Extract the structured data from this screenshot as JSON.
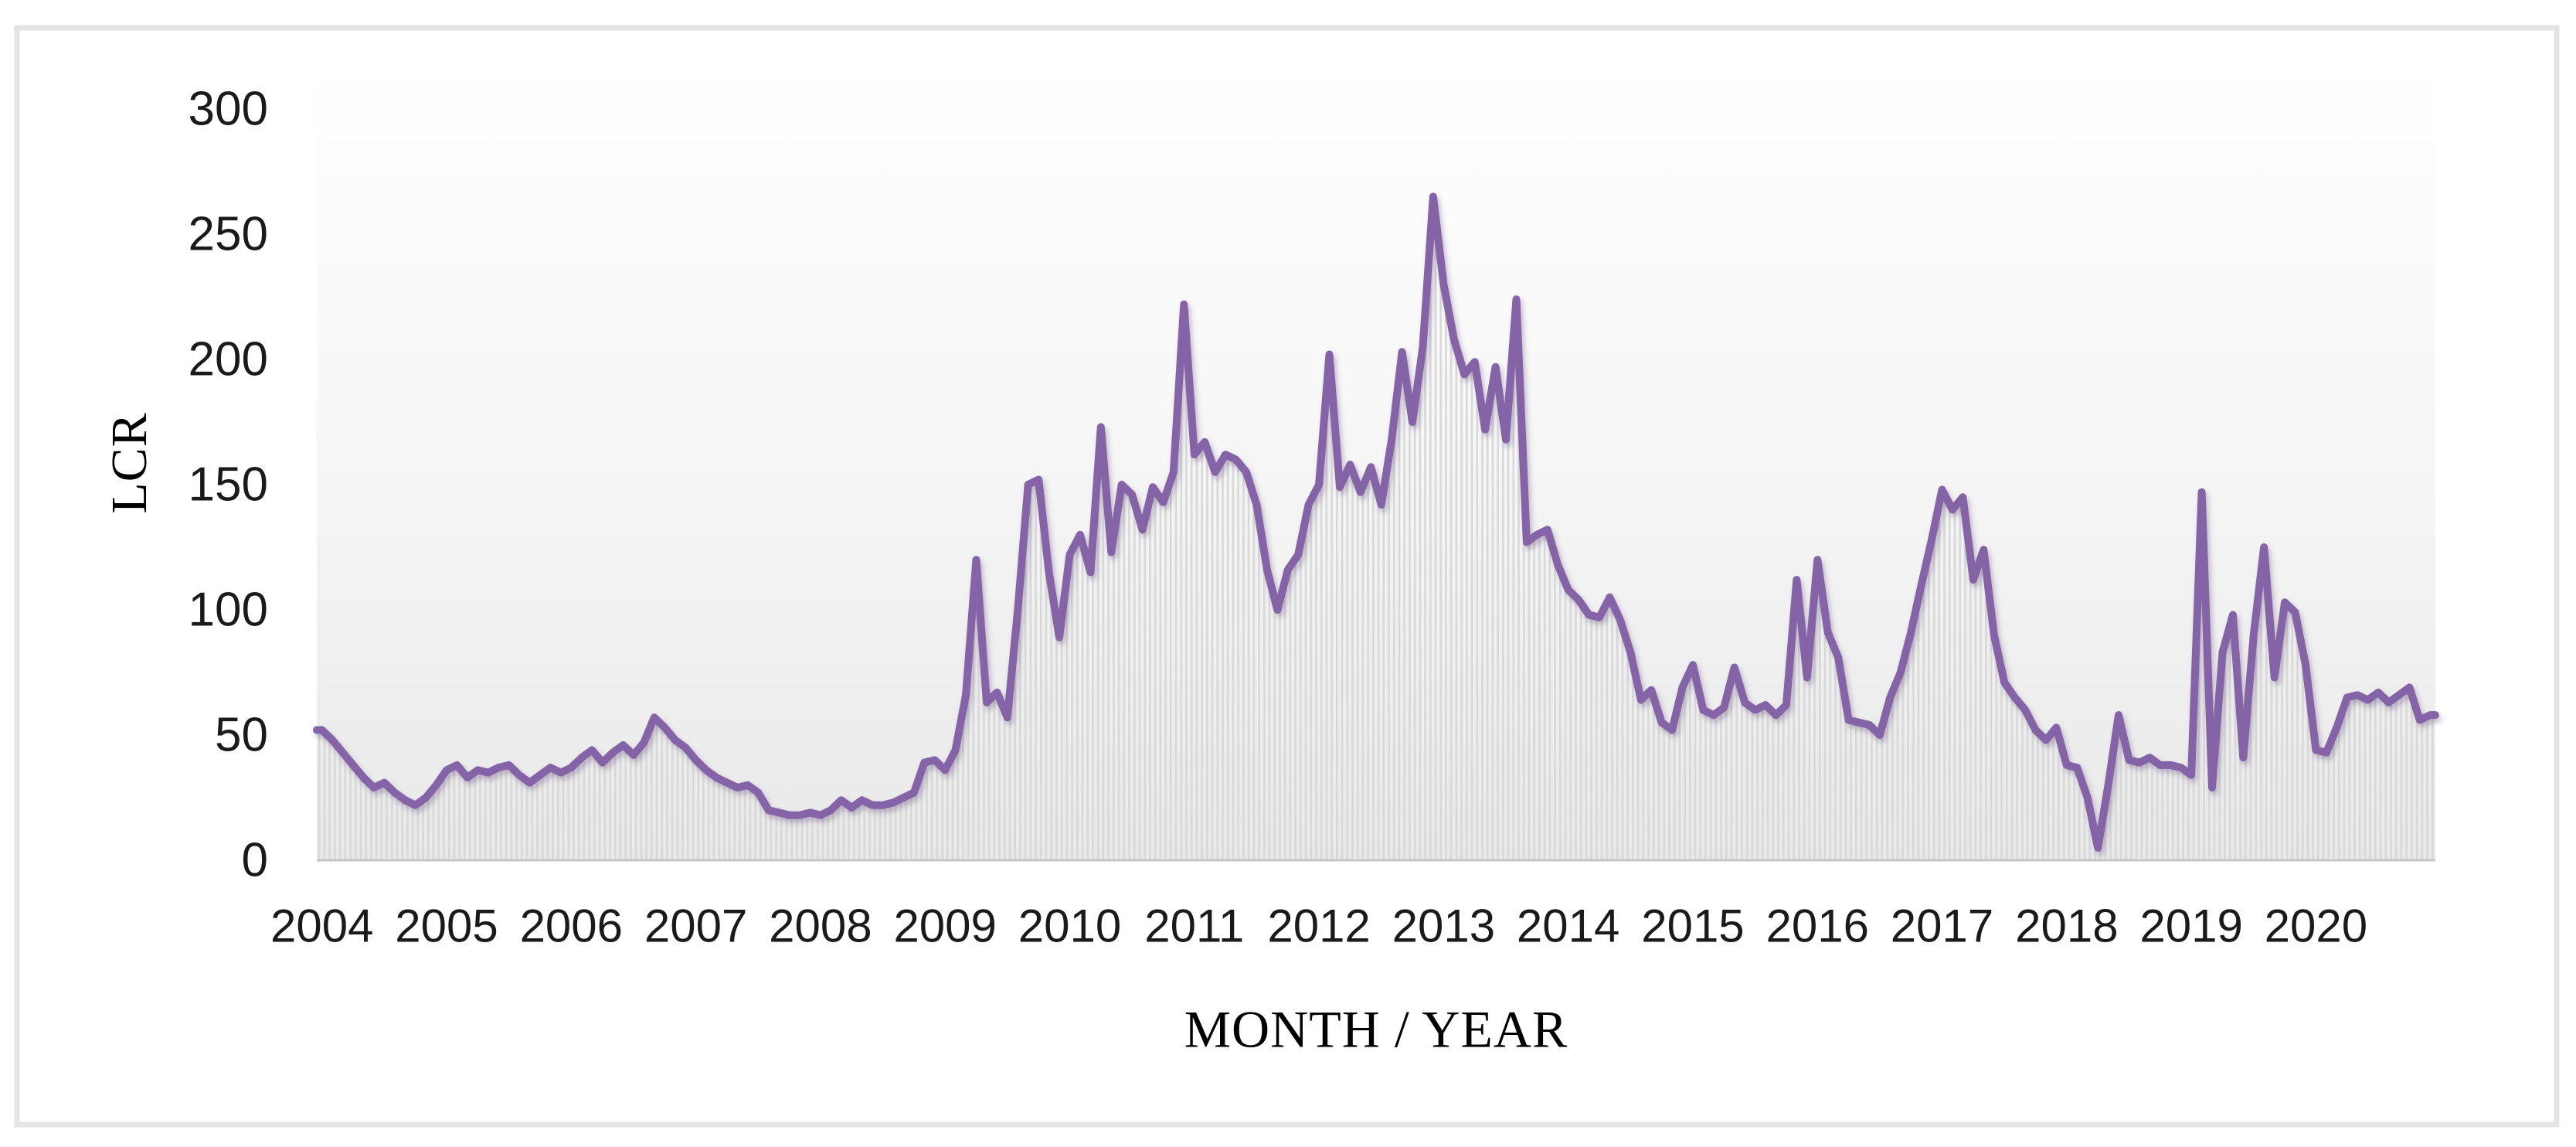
{
  "figure": {
    "border_color": "#e4e4e4",
    "background": "#ffffff"
  },
  "axes": {
    "y": {
      "title": "LCR",
      "ticks": [
        0,
        50,
        100,
        150,
        200,
        250,
        300
      ],
      "min": 0,
      "max": 300
    },
    "x": {
      "title": "MONTH / YEAR",
      "tick_labels": [
        "2004",
        "2005",
        "2006",
        "2007",
        "2008",
        "2009",
        "2010",
        "2011",
        "2012",
        "2013",
        "2014",
        "2015",
        "2016",
        "2017",
        "2018",
        "2019",
        "2020"
      ]
    }
  },
  "style": {
    "line_color": "#8464A6",
    "line_shadow_color": "#5d4878",
    "hatch_color": "#d8d8d8",
    "plot_bg_top": "#ffffff",
    "plot_bg_mid": "#f7f7f7",
    "plot_bg_bottom": "#e9e9e9",
    "axis_line_color": "#c6c6c6",
    "tick_text_color": "#1a1a1a"
  },
  "chart_data": {
    "type": "line",
    "title": "",
    "xlabel": "MONTH / YEAR",
    "ylabel": "LCR",
    "ylim": [
      0,
      300
    ],
    "grid": false,
    "legend_position": "none",
    "x_unit": "month",
    "x_start": "2004-01",
    "x_end": "2020-12",
    "x_tick_labels": [
      "2004",
      "2005",
      "2006",
      "2007",
      "2008",
      "2009",
      "2010",
      "2011",
      "2012",
      "2013",
      "2014",
      "2015",
      "2016",
      "2017",
      "2018",
      "2019",
      "2020"
    ],
    "area_fill": "vertical-hatch-below-line",
    "series": [
      {
        "name": "LCR",
        "color": "#8464A6",
        "values": [
          52,
          48,
          43,
          38,
          33,
          29,
          31,
          27,
          24,
          22,
          25,
          30,
          36,
          38,
          33,
          36,
          35,
          37,
          38,
          34,
          31,
          34,
          37,
          35,
          37,
          41,
          44,
          39,
          43,
          46,
          42,
          47,
          57,
          53,
          48,
          45,
          40,
          36,
          33,
          31,
          29,
          30,
          27,
          20,
          19,
          18,
          18,
          19,
          18,
          20,
          24,
          21,
          24,
          22,
          22,
          23,
          25,
          27,
          39,
          40,
          36,
          44,
          66,
          120,
          63,
          67,
          57,
          100,
          150,
          152,
          115,
          89,
          122,
          130,
          115,
          173,
          123,
          150,
          146,
          132,
          149,
          143,
          155,
          222,
          162,
          167,
          155,
          162,
          160,
          155,
          142,
          116,
          100,
          116,
          122,
          142,
          150,
          202,
          149,
          158,
          147,
          157,
          142,
          168,
          203,
          175,
          205,
          265,
          230,
          208,
          194,
          199,
          172,
          197,
          168,
          224,
          127,
          130,
          132,
          118,
          108,
          104,
          98,
          97,
          105,
          96,
          83,
          64,
          68,
          55,
          52,
          69,
          78,
          60,
          58,
          61,
          77,
          63,
          60,
          62,
          58,
          62,
          112,
          73,
          120,
          91,
          81,
          56,
          55,
          54,
          50,
          65,
          75,
          91,
          110,
          128,
          148,
          140,
          145,
          112,
          124,
          90,
          71,
          65,
          60,
          52,
          48,
          53,
          38,
          37,
          25,
          5,
          30,
          58,
          40,
          39,
          41,
          38,
          38,
          37,
          34,
          147,
          29,
          83,
          98,
          41,
          90,
          125,
          73,
          103,
          99,
          78,
          44,
          43,
          53,
          65,
          66,
          64,
          67,
          63,
          66,
          69,
          56,
          58
        ]
      }
    ]
  }
}
